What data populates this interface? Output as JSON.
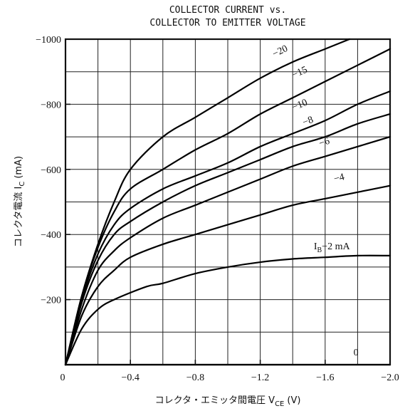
{
  "chart_data": {
    "type": "line",
    "title_lines": [
      "COLLECTOR CURRENT vs.",
      "COLLECTOR TO EMITTER VOLTAGE"
    ],
    "ylabel": "コレクタ電流 I",
    "ylabel_sub": "C",
    "ylabel_unit": "(mA)",
    "xlabel": "コレクタ・エミッタ間電圧 V",
    "xlabel_sub": "CE",
    "xlabel_unit": "(V)",
    "xlim": [
      0,
      -2.0
    ],
    "ylim": [
      0,
      -1000
    ],
    "grid": true,
    "x_ticks": [
      {
        "value": 0,
        "label": "0"
      },
      {
        "value": -0.4,
        "label": "−0.4"
      },
      {
        "value": -0.8,
        "label": "−0.8"
      },
      {
        "value": -1.2,
        "label": "−1.2"
      },
      {
        "value": -1.6,
        "label": "−1.6"
      },
      {
        "value": -2.0,
        "label": "−2.0"
      }
    ],
    "y_ticks": [
      {
        "value": -200,
        "label": "−200"
      },
      {
        "value": -400,
        "label": "−400"
      },
      {
        "value": -600,
        "label": "−600"
      },
      {
        "value": -800,
        "label": "−800"
      },
      {
        "value": -1000,
        "label": "−1000"
      }
    ],
    "series": [
      {
        "label": "0",
        "points": [
          [
            0,
            0
          ],
          [
            -2.0,
            0
          ]
        ]
      },
      {
        "label": "I_B−2 mA",
        "label_main": "I",
        "label_sub": "B",
        "label_rest": "−2 mA",
        "points": [
          [
            0,
            0
          ],
          [
            -0.1,
            -110
          ],
          [
            -0.2,
            -170
          ],
          [
            -0.3,
            -200
          ],
          [
            -0.5,
            -240
          ],
          [
            -0.6,
            -250
          ],
          [
            -0.8,
            -280
          ],
          [
            -1.0,
            -300
          ],
          [
            -1.2,
            -315
          ],
          [
            -1.4,
            -325
          ],
          [
            -1.6,
            -330
          ],
          [
            -1.8,
            -335
          ],
          [
            -2.0,
            -335
          ]
        ]
      },
      {
        "label": "−4",
        "points": [
          [
            0,
            0
          ],
          [
            -0.1,
            -150
          ],
          [
            -0.2,
            -240
          ],
          [
            -0.3,
            -290
          ],
          [
            -0.4,
            -330
          ],
          [
            -0.6,
            -370
          ],
          [
            -0.8,
            -400
          ],
          [
            -1.0,
            -430
          ],
          [
            -1.2,
            -460
          ],
          [
            -1.4,
            -490
          ],
          [
            -1.6,
            -510
          ],
          [
            -1.8,
            -530
          ],
          [
            -2.0,
            -550
          ]
        ]
      },
      {
        "label": "−6",
        "points": [
          [
            0,
            0
          ],
          [
            -0.1,
            -170
          ],
          [
            -0.2,
            -290
          ],
          [
            -0.3,
            -350
          ],
          [
            -0.4,
            -390
          ],
          [
            -0.6,
            -450
          ],
          [
            -0.8,
            -490
          ],
          [
            -1.0,
            -530
          ],
          [
            -1.2,
            -570
          ],
          [
            -1.4,
            -610
          ],
          [
            -1.6,
            -640
          ],
          [
            -1.8,
            -670
          ],
          [
            -2.0,
            -700
          ]
        ]
      },
      {
        "label": "−8",
        "points": [
          [
            0,
            0
          ],
          [
            -0.1,
            -190
          ],
          [
            -0.2,
            -320
          ],
          [
            -0.3,
            -400
          ],
          [
            -0.4,
            -440
          ],
          [
            -0.6,
            -500
          ],
          [
            -0.8,
            -550
          ],
          [
            -1.0,
            -590
          ],
          [
            -1.2,
            -630
          ],
          [
            -1.4,
            -670
          ],
          [
            -1.6,
            -700
          ],
          [
            -1.8,
            -740
          ],
          [
            -2.0,
            -770
          ]
        ]
      },
      {
        "label": "−10",
        "points": [
          [
            0,
            0
          ],
          [
            -0.1,
            -200
          ],
          [
            -0.2,
            -340
          ],
          [
            -0.3,
            -430
          ],
          [
            -0.4,
            -480
          ],
          [
            -0.6,
            -540
          ],
          [
            -0.8,
            -580
          ],
          [
            -1.0,
            -620
          ],
          [
            -1.2,
            -670
          ],
          [
            -1.4,
            -710
          ],
          [
            -1.6,
            -750
          ],
          [
            -1.8,
            -800
          ],
          [
            -2.0,
            -840
          ]
        ]
      },
      {
        "label": "−15",
        "points": [
          [
            0,
            0
          ],
          [
            -0.1,
            -210
          ],
          [
            -0.2,
            -360
          ],
          [
            -0.3,
            -470
          ],
          [
            -0.4,
            -540
          ],
          [
            -0.6,
            -600
          ],
          [
            -0.8,
            -660
          ],
          [
            -1.0,
            -710
          ],
          [
            -1.2,
            -770
          ],
          [
            -1.4,
            -820
          ],
          [
            -1.6,
            -870
          ],
          [
            -1.8,
            -920
          ],
          [
            -2.0,
            -970
          ]
        ]
      },
      {
        "label": "−20",
        "points": [
          [
            0,
            0
          ],
          [
            -0.1,
            -210
          ],
          [
            -0.2,
            -370
          ],
          [
            -0.3,
            -500
          ],
          [
            -0.4,
            -600
          ],
          [
            -0.6,
            -700
          ],
          [
            -0.8,
            -760
          ],
          [
            -1.0,
            -820
          ],
          [
            -1.2,
            -880
          ],
          [
            -1.4,
            -930
          ],
          [
            -1.6,
            -970
          ],
          [
            -1.75,
            -1000
          ]
        ]
      }
    ]
  }
}
